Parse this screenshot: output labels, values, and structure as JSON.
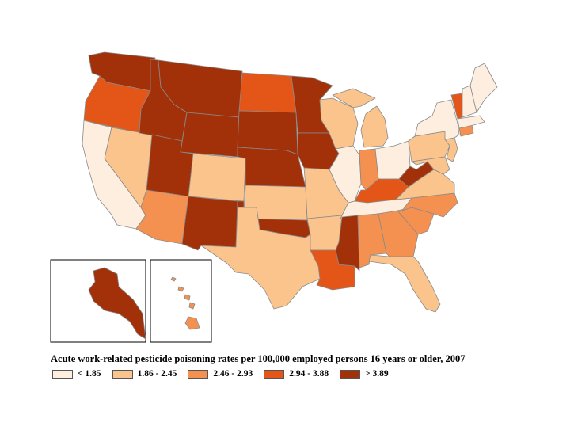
{
  "title": "Acute work-related pesticide poisoning rates per 100,000 employed persons 16 years or older, 2007",
  "colors": {
    "c1": "#fdeee0",
    "c2": "#fbc48c",
    "c3": "#f59150",
    "c4": "#e35617",
    "c5": "#a2310a",
    "border": "#8a8a8a"
  },
  "legend": [
    {
      "label": "< 1.85",
      "class": "c1"
    },
    {
      "label": "1.86 - 2.45",
      "class": "c2"
    },
    {
      "label": "2.46 - 2.93",
      "class": "c3"
    },
    {
      "label": "2.94 - 3.88",
      "class": "c4"
    },
    {
      "label": "> 3.89",
      "class": "c5"
    }
  ],
  "states": {
    "WA": "c5",
    "OR": "c4",
    "CA": "c1",
    "NV": "c2",
    "ID": "c5",
    "MT": "c5",
    "WY": "c5",
    "UT": "c5",
    "AZ": "c3",
    "CO": "c2",
    "NM": "c5",
    "ND": "c4",
    "SD": "c5",
    "NE": "c5",
    "KS": "c2",
    "OK": "c5",
    "TX": "c2",
    "MN": "c5",
    "IA": "c5",
    "MO": "c2",
    "AR": "c2",
    "LA": "c4",
    "WI": "c2",
    "IL": "c1",
    "MI": "c2",
    "IN": "c3",
    "OH": "c1",
    "KY": "c4",
    "TN": "c1",
    "MS": "c5",
    "AL": "c3",
    "GA": "c3",
    "FL": "c2",
    "SC": "c3",
    "NC": "c3",
    "VA": "c2",
    "WV": "c5",
    "PA": "c2",
    "NY": "c1",
    "VT": "c4",
    "NH": "c1",
    "ME": "c1",
    "MA": "c1",
    "CT": "c3",
    "NJ": "c2",
    "MD": "c2",
    "AK": "c5",
    "HI": "c3"
  }
}
